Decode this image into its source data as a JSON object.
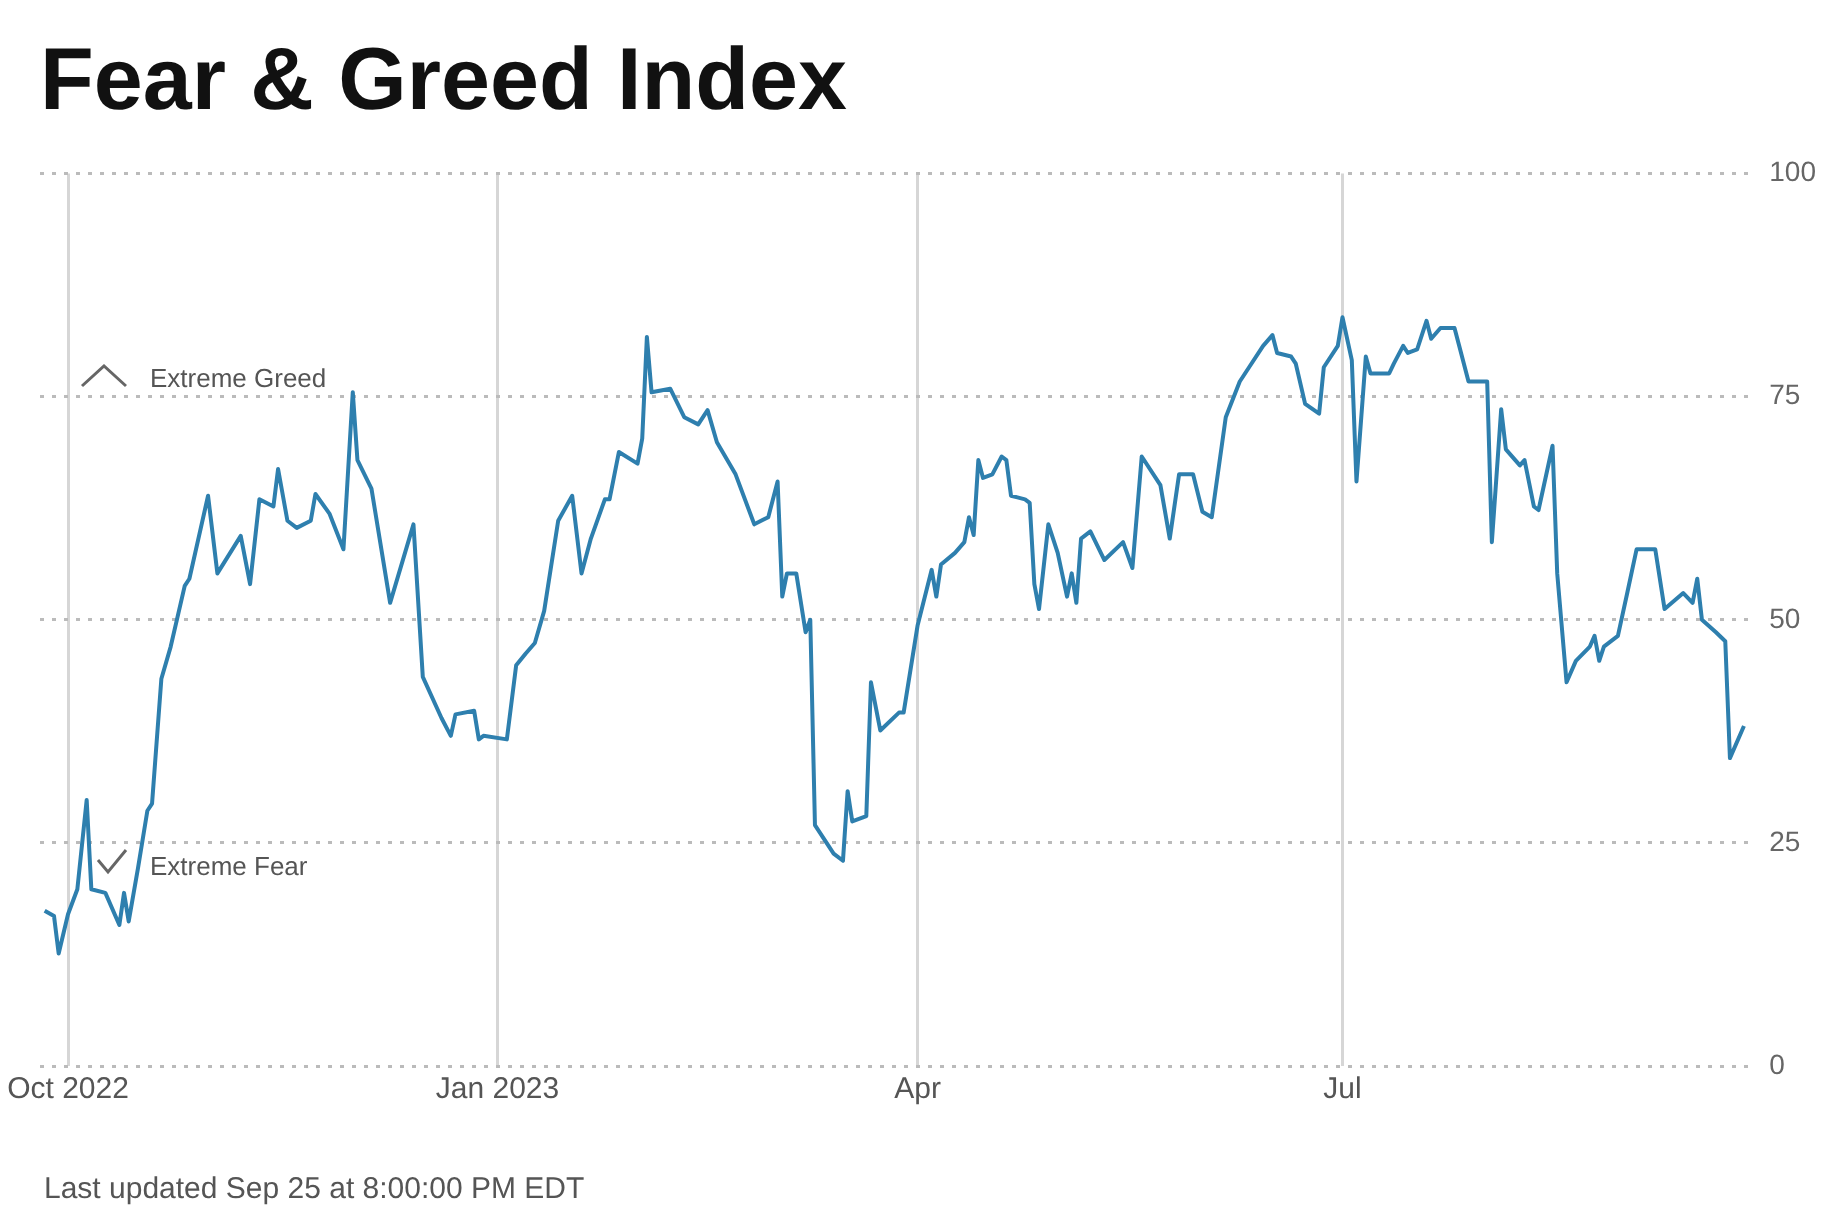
{
  "chart_data": {
    "type": "line",
    "title": "Fear & Greed Index",
    "x": [
      "2022-09-26",
      "2022-09-28",
      "2022-09-29",
      "2022-10-01",
      "2022-10-03",
      "2022-10-05",
      "2022-10-06",
      "2022-10-09",
      "2022-10-12",
      "2022-10-13",
      "2022-10-14",
      "2022-10-16",
      "2022-10-18",
      "2022-10-19",
      "2022-10-21",
      "2022-10-23",
      "2022-10-26",
      "2022-10-27",
      "2022-10-31",
      "2022-11-02",
      "2022-11-07",
      "2022-11-09",
      "2022-11-11",
      "2022-11-14",
      "2022-11-15",
      "2022-11-17",
      "2022-11-19",
      "2022-11-22",
      "2022-11-23",
      "2022-11-26",
      "2022-11-29",
      "2022-12-01",
      "2022-12-02",
      "2022-12-05",
      "2022-12-09",
      "2022-12-14",
      "2022-12-16",
      "2022-12-20",
      "2022-12-22",
      "2022-12-23",
      "2022-12-27",
      "2022-12-28",
      "2022-12-29",
      "2023-01-03",
      "2023-01-05",
      "2023-01-07",
      "2023-01-09",
      "2023-01-11",
      "2023-01-14",
      "2023-01-17",
      "2023-01-19",
      "2023-01-21",
      "2023-01-24",
      "2023-01-25",
      "2023-01-27",
      "2023-01-31",
      "2023-02-01",
      "2023-02-02",
      "2023-02-03",
      "2023-02-07",
      "2023-02-10",
      "2023-02-13",
      "2023-02-15",
      "2023-02-17",
      "2023-02-21",
      "2023-02-25",
      "2023-02-28",
      "2023-03-02",
      "2023-03-03",
      "2023-03-04",
      "2023-03-06",
      "2023-03-08",
      "2023-03-09",
      "2023-03-10",
      "2023-03-14",
      "2023-03-16",
      "2023-03-17",
      "2023-03-18",
      "2023-03-21",
      "2023-03-22",
      "2023-03-24",
      "2023-03-28",
      "2023-03-29",
      "2023-04-01",
      "2023-04-04",
      "2023-04-05",
      "2023-04-06",
      "2023-04-09",
      "2023-04-11",
      "2023-04-12",
      "2023-04-13",
      "2023-04-14",
      "2023-04-15",
      "2023-04-17",
      "2023-04-19",
      "2023-04-20",
      "2023-04-21",
      "2023-04-24",
      "2023-04-25",
      "2023-04-26",
      "2023-04-27",
      "2023-04-29",
      "2023-05-01",
      "2023-05-03",
      "2023-05-04",
      "2023-05-05",
      "2023-05-06",
      "2023-05-08",
      "2023-05-11",
      "2023-05-15",
      "2023-05-17",
      "2023-05-19",
      "2023-05-23",
      "2023-05-25",
      "2023-05-27",
      "2023-05-30",
      "2023-06-01",
      "2023-06-03",
      "2023-06-06",
      "2023-06-09",
      "2023-06-11",
      "2023-06-14",
      "2023-06-16",
      "2023-06-17",
      "2023-06-20",
      "2023-06-21",
      "2023-06-23",
      "2023-06-26",
      "2023-06-27",
      "2023-06-30",
      "2023-07-01",
      "2023-07-03",
      "2023-07-04",
      "2023-07-06",
      "2023-07-07",
      "2023-07-11",
      "2023-07-12",
      "2023-07-14",
      "2023-07-15",
      "2023-07-17",
      "2023-07-19",
      "2023-07-20",
      "2023-07-22",
      "2023-07-25",
      "2023-07-26",
      "2023-07-28",
      "2023-08-01",
      "2023-08-02",
      "2023-08-04",
      "2023-08-05",
      "2023-08-08",
      "2023-08-09",
      "2023-08-11",
      "2023-08-12",
      "2023-08-15",
      "2023-08-16",
      "2023-08-18",
      "2023-08-20",
      "2023-08-23",
      "2023-08-24",
      "2023-08-25",
      "2023-08-26",
      "2023-08-29",
      "2023-08-31",
      "2023-09-02",
      "2023-09-06",
      "2023-09-08",
      "2023-09-12",
      "2023-09-14",
      "2023-09-15",
      "2023-09-16",
      "2023-09-19",
      "2023-09-21",
      "2023-09-22",
      "2023-09-25"
    ],
    "series": [
      {
        "color": "#2e7fae",
        "values": [
          17.4,
          16.8,
          12.6,
          17.0,
          19.8,
          29.8,
          19.8,
          19.4,
          15.8,
          19.4,
          16.2,
          22.2,
          28.6,
          29.4,
          43.4,
          47.0,
          53.8,
          54.6,
          63.9,
          55.2,
          59.4,
          54.0,
          63.5,
          62.7,
          66.9,
          61.1,
          60.3,
          61.1,
          64.1,
          61.9,
          57.9,
          75.5,
          67.9,
          64.7,
          51.9,
          60.7,
          43.6,
          39.0,
          37.0,
          39.4,
          39.8,
          36.6,
          37.0,
          36.6,
          44.9,
          46.2,
          47.4,
          51.0,
          61.1,
          63.9,
          55.2,
          59.1,
          63.5,
          63.5,
          68.8,
          67.5,
          70.3,
          81.7,
          75.5,
          75.9,
          72.7,
          71.9,
          73.5,
          69.9,
          66.3,
          60.7,
          61.5,
          65.5,
          52.6,
          55.2,
          55.2,
          48.6,
          50.0,
          27.0,
          23.8,
          23.0,
          30.8,
          27.4,
          28.0,
          43.0,
          37.6,
          39.6,
          39.6,
          49.4,
          55.6,
          52.6,
          56.2,
          57.5,
          58.7,
          61.5,
          59.5,
          67.9,
          65.9,
          66.3,
          68.3,
          67.9,
          63.9,
          63.5,
          63.1,
          54.0,
          51.2,
          60.7,
          57.5,
          52.6,
          55.2,
          51.9,
          59.1,
          59.9,
          56.7,
          58.7,
          55.8,
          68.3,
          65.1,
          59.1,
          66.3,
          66.3,
          62.1,
          61.5,
          72.7,
          76.7,
          78.3,
          80.7,
          81.9,
          79.9,
          79.5,
          78.7,
          74.2,
          73.1,
          78.3,
          80.7,
          83.9,
          79.1,
          65.5,
          79.5,
          77.6,
          77.6,
          78.7,
          80.7,
          79.9,
          80.3,
          83.5,
          81.5,
          82.7,
          82.7,
          80.7,
          76.7,
          76.7,
          58.7,
          73.6,
          69.1,
          67.3,
          67.9,
          62.7,
          62.3,
          69.5,
          55.2,
          43.0,
          45.4,
          47.0,
          48.2,
          45.4,
          47.0,
          48.2,
          53.0,
          57.9,
          57.9,
          51.2,
          53.0,
          51.9,
          54.6,
          50.0,
          48.6,
          47.6,
          34.5,
          38.1
        ]
      }
    ],
    "xlim": [
      "2022-09-25",
      "2023-09-27"
    ],
    "xticks": [
      {
        "value": "2022-10-01",
        "label": "Oct 2022"
      },
      {
        "value": "2023-01-01",
        "label": "Jan 2023"
      },
      {
        "value": "2023-04-01",
        "label": "Apr"
      },
      {
        "value": "2023-07-01",
        "label": "Jul"
      }
    ],
    "ylim": [
      0,
      100
    ],
    "yticks": [
      0,
      25,
      50,
      75,
      100
    ],
    "grid": true,
    "legend": false,
    "marker": "none",
    "line_style": "solid",
    "annotations": [
      "Extreme Greed",
      "Extreme Fear",
      "Last updated Sep 25 at 8:00:00 PM EDT"
    ]
  }
}
